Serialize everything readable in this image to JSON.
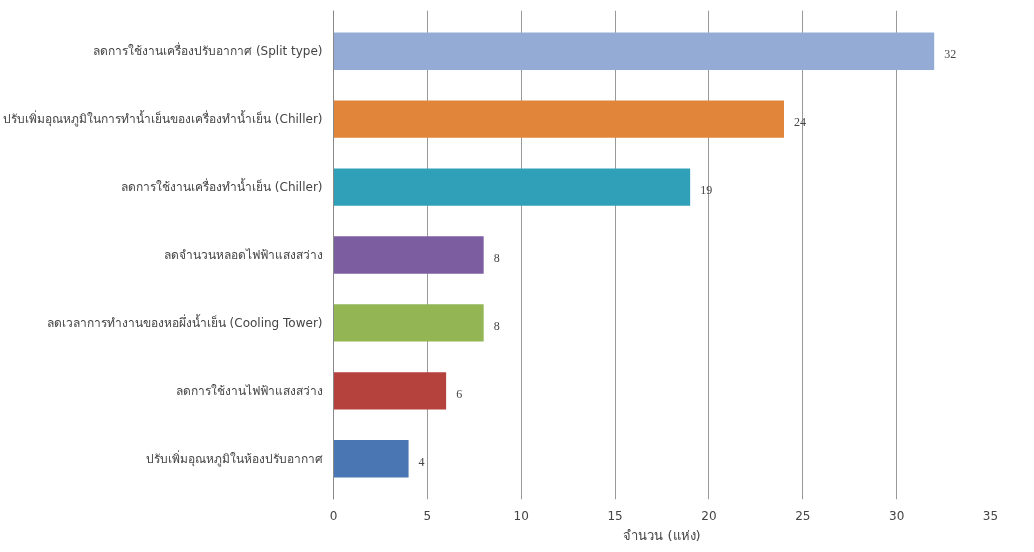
{
  "chart_data": {
    "type": "bar",
    "orientation": "horizontal",
    "xlabel": "จำนวน (แห่ง)",
    "categories": [
      "ลดการใช้งานเครื่องปรับอากาศ (Split type)",
      "ปรับเพิ่มอุณหภูมิในการทำน้ำเย็นของเครื่องทำน้ำเย็น (Chiller)",
      "ลดการใช้งานเครื่องทำน้ำเย็น (Chiller)",
      "ลดจำนวนหลอดไฟฟ้าแสงสว่าง",
      "ลดเวลาการทำงานของหอผึ่งน้ำเย็น (Cooling Tower)",
      "ลดการใช้งานไฟฟ้าแสงสว่าง",
      "ปรับเพิ่มอุณหภูมิในห้องปรับอากาศ"
    ],
    "values": [
      32,
      24,
      19,
      8,
      8,
      6,
      4
    ],
    "colors": [
      "#94abd6",
      "#e0853a",
      "#30a0b8",
      "#7c5ea0",
      "#93b553",
      "#b5423d",
      "#4a77b4"
    ],
    "xlim": [
      0,
      35
    ],
    "xticks": [
      0,
      5,
      10,
      15,
      20,
      25,
      30,
      35
    ],
    "grid": "x",
    "data_labels": true
  }
}
